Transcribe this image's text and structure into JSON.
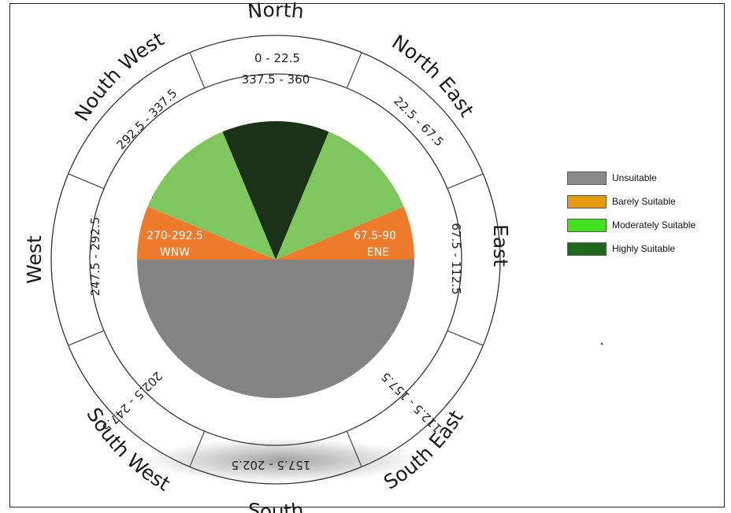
{
  "directions": [
    {
      "id": "north",
      "label": "North",
      "range": [
        "0 - 22.5",
        "337.5 - 360"
      ]
    },
    {
      "id": "north-east",
      "label": "North East",
      "range": [
        "22.5 - 67.5"
      ]
    },
    {
      "id": "east",
      "label": "East",
      "range": [
        "67.5 - 112.5"
      ]
    },
    {
      "id": "south-east",
      "label": "South East",
      "range": [
        "112.5 - 157.5"
      ]
    },
    {
      "id": "south",
      "label": "South",
      "range": [
        "157.5 - 202.5"
      ]
    },
    {
      "id": "south-west",
      "label": "South West",
      "range": [
        "202.5 - 247.5"
      ]
    },
    {
      "id": "west",
      "label": "West",
      "range": [
        "247.5 - 292.5"
      ]
    },
    {
      "id": "north-west",
      "label": "Nouth West",
      "range": [
        "292.5 - 337.5"
      ]
    }
  ],
  "wedges": {
    "east_range": "67.5-90",
    "east_name": "ENE",
    "west_range": "270-292.5",
    "west_name": "WNW"
  },
  "legend": [
    {
      "label": "Unsuitable",
      "color": "#8a8a8a"
    },
    {
      "label": "Barely Suitable",
      "color": "#e59b12"
    },
    {
      "label": "Moderately Suitable",
      "color": "#44e01e"
    },
    {
      "label": "Highly Suitable",
      "color": "#1f6a1a"
    }
  ],
  "colors": {
    "unsuitable": "#838383",
    "barely": "#ee7a2c",
    "moderate": "#7ec65e",
    "highly": "#1c3218"
  }
}
